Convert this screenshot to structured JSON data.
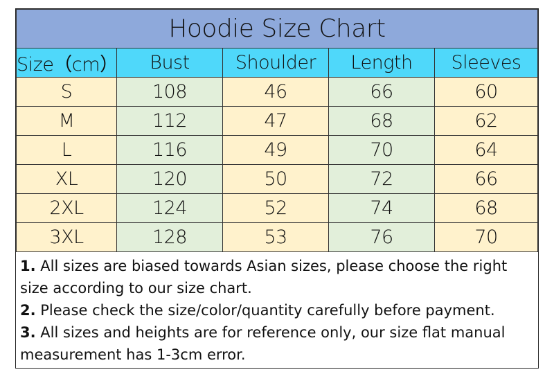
{
  "title": "Hoodie Size Chart",
  "columns": [
    "Size（cm）",
    "Bust",
    "Shoulder",
    "Length",
    "Sleeves"
  ],
  "rows": [
    [
      "S",
      "108",
      "46",
      "66",
      "60"
    ],
    [
      "M",
      "112",
      "47",
      "68",
      "62"
    ],
    [
      "L",
      "116",
      "49",
      "70",
      "64"
    ],
    [
      "XL",
      "120",
      "50",
      "72",
      "66"
    ],
    [
      "2XL",
      "124",
      "52",
      "74",
      "68"
    ],
    [
      "3XL",
      "128",
      "53",
      "76",
      "70"
    ]
  ],
  "notes": [
    {
      "num": "1.",
      "text": " All sizes are biased towards Asian sizes, please choose the right size according to our size chart."
    },
    {
      "num": "2.",
      "text": " Please check the size/color/quantity carefully before payment."
    },
    {
      "num": "3.",
      "text": " All sizes and heights are for reference only, our size flat manual measurement has 1-3cm error."
    }
  ],
  "colors": {
    "title_bg": "#8ea9db",
    "header_bg": "#4fd8fa",
    "yellow": "#fff2cc",
    "green": "#e2efda"
  }
}
